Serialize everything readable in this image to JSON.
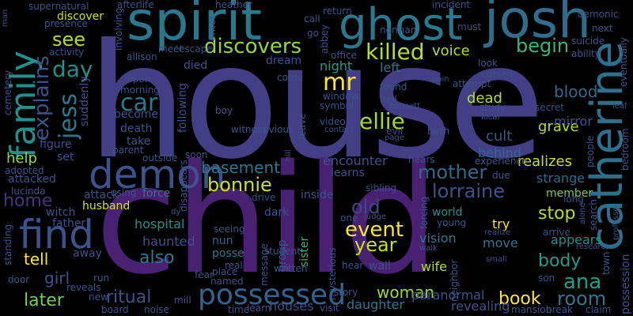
{
  "words": [
    {
      "text": "house",
      "color": "#433e85"
    },
    {
      "text": "child",
      "color": "#482172"
    },
    {
      "text": "spirit",
      "color": "#2a788e"
    },
    {
      "text": "ghost",
      "color": "#2a788e"
    },
    {
      "text": "josh",
      "color": "#2f6c8e"
    },
    {
      "text": "demon",
      "color": "#3b528b"
    },
    {
      "text": "catherine",
      "color": "#2d708e"
    },
    {
      "text": "family",
      "color": "#21918c"
    },
    {
      "text": "find",
      "color": "#3b528b"
    },
    {
      "text": "possessed",
      "color": "#33638d"
    },
    {
      "text": "discovers",
      "color": "#8fd744"
    },
    {
      "text": "killed",
      "color": "#b5de2b"
    },
    {
      "text": "jess",
      "color": "#2a788e"
    },
    {
      "text": "mr",
      "color": "#fde725"
    },
    {
      "text": "ellie",
      "color": "#a0da39"
    },
    {
      "text": "explains",
      "color": "#3b528b"
    },
    {
      "text": "car",
      "color": "#2a788e"
    },
    {
      "text": "day",
      "color": "#21918c"
    },
    {
      "text": "see",
      "color": "#b5de2b"
    },
    {
      "text": "begin",
      "color": "#35b779"
    },
    {
      "text": "night",
      "color": "#1f9e89"
    },
    {
      "text": "left",
      "color": "#2a788e"
    },
    {
      "text": "voice",
      "color": "#b5de2b"
    },
    {
      "text": "mother",
      "color": "#31688e"
    },
    {
      "text": "lorraine",
      "color": "#3b528b"
    },
    {
      "text": "bonnie",
      "color": "#c8e020"
    },
    {
      "text": "basement",
      "color": "#2a788e"
    },
    {
      "text": "old",
      "color": "#3e4989"
    },
    {
      "text": "event",
      "color": "#fde725"
    },
    {
      "text": "year",
      "color": "#c8e020"
    },
    {
      "text": "help",
      "color": "#8fd744"
    },
    {
      "text": "home",
      "color": "#46327e"
    },
    {
      "text": "tell",
      "color": "#fde725"
    },
    {
      "text": "girl",
      "color": "#3b528b"
    },
    {
      "text": "later",
      "color": "#6ece58"
    },
    {
      "text": "ritual",
      "color": "#3b528b"
    },
    {
      "text": "also",
      "color": "#2a788e"
    },
    {
      "text": "stop",
      "color": "#b5de2b"
    },
    {
      "text": "book",
      "color": "#fde725"
    },
    {
      "text": "ana",
      "color": "#1f9e89"
    },
    {
      "text": "room",
      "color": "#2a788e"
    },
    {
      "text": "body",
      "color": "#1f9e89"
    },
    {
      "text": "woman",
      "color": "#a0da39"
    },
    {
      "text": "blood",
      "color": "#31688e"
    },
    {
      "text": "dead",
      "color": "#b5de2b"
    },
    {
      "text": "cult",
      "color": "#3b528b"
    },
    {
      "text": "grave",
      "color": "#b5de2b"
    },
    {
      "text": "mirror",
      "color": "#3b528b"
    },
    {
      "text": "behind",
      "color": "#31688e"
    },
    {
      "text": "realizes",
      "color": "#c8e020"
    },
    {
      "text": "strange",
      "color": "#31688e"
    },
    {
      "text": "member",
      "color": "#6ece58"
    },
    {
      "text": "appears",
      "color": "#21918c"
    },
    {
      "text": "move",
      "color": "#2a788e"
    },
    {
      "text": "vision",
      "color": "#2a788e"
    },
    {
      "text": "wife",
      "color": "#b5de2b"
    },
    {
      "text": "try",
      "color": "#fde725"
    },
    {
      "text": "world",
      "color": "#21918c"
    },
    {
      "text": "paranormal",
      "color": "#3b528b"
    },
    {
      "text": "revealing",
      "color": "#3b528b"
    },
    {
      "text": "daughter",
      "color": "#2a788e"
    },
    {
      "text": "wall",
      "color": "#3b528b"
    },
    {
      "text": "hospital",
      "color": "#21918c"
    },
    {
      "text": "haunted",
      "color": "#3b528b"
    },
    {
      "text": "nun",
      "color": "#31688e"
    },
    {
      "text": "posse",
      "color": "#2a788e"
    },
    {
      "text": "husband",
      "color": "#c8e020"
    },
    {
      "text": "father",
      "color": "#3b528b"
    },
    {
      "text": "away",
      "color": "#3b528b"
    },
    {
      "text": "attacked",
      "color": "#3b528b"
    },
    {
      "text": "witch",
      "color": "#3b528b"
    },
    {
      "text": "attack",
      "color": "#3b528b"
    },
    {
      "text": "force",
      "color": "#2a788e"
    },
    {
      "text": "encounter",
      "color": "#3b528b"
    },
    {
      "text": "learns",
      "color": "#3b528b"
    },
    {
      "text": "inside",
      "color": "#3b528b"
    },
    {
      "text": "dark",
      "color": "#3b528b"
    },
    {
      "text": "sister",
      "color": "#35b779"
    },
    {
      "text": "group",
      "color": "#3b528b"
    },
    {
      "text": "message",
      "color": "#3b528b"
    },
    {
      "text": "hears",
      "color": "#3b528b"
    },
    {
      "text": "experience",
      "color": "#3b528b"
    },
    {
      "text": "dream",
      "color": "#3b528b"
    },
    {
      "text": "come",
      "color": "#3b528b"
    },
    {
      "text": "died",
      "color": "#3b528b"
    },
    {
      "text": "following",
      "color": "#3b528b"
    },
    {
      "text": "death",
      "color": "#3b528b"
    },
    {
      "text": "take",
      "color": "#3b528b"
    },
    {
      "text": "become",
      "color": "#3b528b"
    },
    {
      "text": "suddenly",
      "color": "#3b528b"
    },
    {
      "text": "figure",
      "color": "#3b528b"
    },
    {
      "text": "set",
      "color": "#3b528b"
    },
    {
      "text": "parent",
      "color": "#3b528b"
    },
    {
      "text": "discover",
      "color": "#c8e020"
    },
    {
      "text": "supernatural",
      "color": "#3b528b"
    },
    {
      "text": "presence",
      "color": "#3b528b"
    },
    {
      "text": "return",
      "color": "#3b528b"
    },
    {
      "text": "norman",
      "color": "#3b528b"
    },
    {
      "text": "demonic",
      "color": "#3b528b"
    },
    {
      "text": "next",
      "color": "#3b528b"
    },
    {
      "text": "suicide",
      "color": "#3b528b"
    },
    {
      "text": "ability",
      "color": "#3b528b"
    },
    {
      "text": "attempt",
      "color": "#3b528b"
    },
    {
      "text": "look",
      "color": "#3b528b"
    },
    {
      "text": "cursed",
      "color": "#3b528b"
    },
    {
      "text": "symbol",
      "color": "#3b528b"
    },
    {
      "text": "video",
      "color": "#3b528b"
    },
    {
      "text": "evil",
      "color": "#3b528b"
    },
    {
      "text": "birth",
      "color": "#3b528b"
    },
    {
      "text": "witness",
      "color": "#3b528b"
    },
    {
      "text": "previous",
      "color": "#3b528b"
    },
    {
      "text": "boy",
      "color": "#3b528b"
    },
    {
      "text": "upon",
      "color": "#3b528b"
    },
    {
      "text": "meet",
      "color": "#3b528b"
    },
    {
      "text": "escape",
      "color": "#3b528b"
    },
    {
      "text": "soon",
      "color": "#3b528b"
    },
    {
      "text": "outside",
      "color": "#3b528b"
    },
    {
      "text": "using",
      "color": "#3b528b"
    },
    {
      "text": "disappears",
      "color": "#3b528b"
    },
    {
      "text": "seeing",
      "color": "#3b528b"
    },
    {
      "text": "real",
      "color": "#3b528b"
    },
    {
      "text": "named",
      "color": "#3b528b"
    },
    {
      "text": "fear",
      "color": "#3b528b"
    },
    {
      "text": "place",
      "color": "#3b528b"
    },
    {
      "text": "time",
      "color": "#3b528b"
    },
    {
      "text": "learn",
      "color": "#3b528b"
    },
    {
      "text": "written",
      "color": "#3b528b"
    },
    {
      "text": "drive",
      "color": "#3b528b"
    },
    {
      "text": "student",
      "color": "#3b528b"
    },
    {
      "text": "mysterious",
      "color": "#3b528b"
    },
    {
      "text": "hear",
      "color": "#3b528b"
    },
    {
      "text": "story",
      "color": "#3b528b"
    },
    {
      "text": "visit",
      "color": "#3b528b"
    },
    {
      "text": "houses",
      "color": "#3b528b"
    },
    {
      "text": "mansion",
      "color": "#3b528b"
    },
    {
      "text": "break",
      "color": "#3b528b"
    },
    {
      "text": "claim",
      "color": "#3b528b"
    },
    {
      "text": "son",
      "color": "#3b528b"
    },
    {
      "text": "door",
      "color": "#3b528b"
    },
    {
      "text": "run",
      "color": "#3b528b"
    },
    {
      "text": "reveals",
      "color": "#3b528b"
    },
    {
      "text": "new",
      "color": "#3b528b"
    },
    {
      "text": "board",
      "color": "#3b528b"
    },
    {
      "text": "noise",
      "color": "#3b528b"
    },
    {
      "text": "mill",
      "color": "#3b528b"
    },
    {
      "text": "standing",
      "color": "#3b528b"
    },
    {
      "text": "lucinda",
      "color": "#3b528b"
    },
    {
      "text": "adopted",
      "color": "#3b528b"
    },
    {
      "text": "cemetery",
      "color": "#3b528b"
    },
    {
      "text": "activity",
      "color": "#3b528b"
    },
    {
      "text": "allison",
      "color": "#3b528b"
    },
    {
      "text": "involving",
      "color": "#3b528b"
    },
    {
      "text": "afterlife",
      "color": "#3b528b"
    },
    {
      "text": "morning",
      "color": "#3b528b"
    },
    {
      "text": "enter",
      "color": "#3b528b"
    },
    {
      "text": "heather",
      "color": "#3b528b"
    },
    {
      "text": "incident",
      "color": "#3b528b"
    },
    {
      "text": "call",
      "color": "#3b528b"
    },
    {
      "text": "go",
      "color": "#3b528b"
    },
    {
      "text": "abbey",
      "color": "#3b528b"
    },
    {
      "text": "office",
      "color": "#3b528b"
    },
    {
      "text": "must",
      "color": "#3b528b"
    },
    {
      "text": "found",
      "color": "#3b528b"
    },
    {
      "text": "hell",
      "color": "#3b528b"
    },
    {
      "text": "bennett",
      "color": "#3b528b"
    },
    {
      "text": "window",
      "color": "#3b528b"
    },
    {
      "text": "contact",
      "color": "#3b528b"
    },
    {
      "text": "page",
      "color": "#3b528b"
    },
    {
      "text": "pain",
      "color": "#3b528b"
    },
    {
      "text": "study",
      "color": "#3b528b"
    },
    {
      "text": "local",
      "color": "#3b528b"
    },
    {
      "text": "secret",
      "color": "#3b528b"
    },
    {
      "text": "leaf",
      "color": "#3b528b"
    },
    {
      "text": "people",
      "color": "#3b528b"
    },
    {
      "text": "search",
      "color": "#3b528b"
    },
    {
      "text": "bedroom",
      "color": "#3b528b"
    },
    {
      "text": "eventually",
      "color": "#3b528b"
    },
    {
      "text": "long",
      "color": "#3b528b"
    },
    {
      "text": "due",
      "color": "#3b528b"
    },
    {
      "text": "forcing",
      "color": "#3b528b"
    },
    {
      "text": "young",
      "color": "#3b528b"
    },
    {
      "text": "judge",
      "color": "#3b528b"
    },
    {
      "text": "one",
      "color": "#3b528b"
    },
    {
      "text": "sibling",
      "color": "#3b528b"
    },
    {
      "text": "realize",
      "color": "#3b528b"
    },
    {
      "text": "arrive",
      "color": "#3b528b"
    },
    {
      "text": "research",
      "color": "#3b528b"
    },
    {
      "text": "town",
      "color": "#3b528b"
    },
    {
      "text": "alone",
      "color": "#3b528b"
    },
    {
      "text": "professor",
      "color": "#3b528b"
    },
    {
      "text": "possession",
      "color": "#3b528b"
    },
    {
      "text": "small",
      "color": "#3b528b"
    },
    {
      "text": "walk",
      "color": "#3b528b"
    },
    {
      "text": "neighbor",
      "color": "#3b528b"
    },
    {
      "text": "man",
      "color": "#3b528b"
    },
    {
      "text": "dy",
      "color": "#3b528b"
    },
    {
      "text": "hill",
      "color": "#3b528b"
    },
    {
      "text": "leave",
      "color": "#3b528b"
    }
  ]
}
